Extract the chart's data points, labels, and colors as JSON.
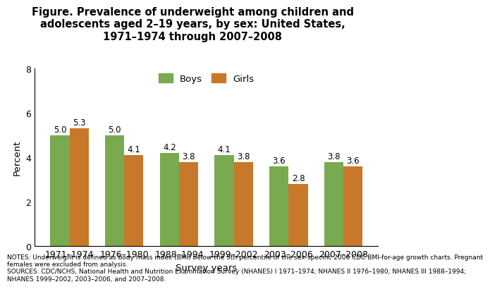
{
  "title_line1": "Figure. Prevalence of underweight among children and",
  "title_line2": "adolescents aged 2–19 years, by sex: United States,",
  "title_line3": "1971–1974 through 2007–2008",
  "categories": [
    "1971–1974",
    "1976–1980",
    "1988–1994",
    "1999–2002",
    "2003–2006",
    "2007–2008"
  ],
  "boys_values": [
    5.0,
    5.0,
    4.2,
    4.1,
    3.6,
    3.8
  ],
  "girls_values": [
    5.3,
    4.1,
    3.8,
    3.8,
    2.8,
    3.6
  ],
  "boys_color": "#7aaa4f",
  "girls_color": "#c8782a",
  "ylabel": "Percent",
  "xlabel": "Survey years",
  "ylim": [
    0,
    8
  ],
  "yticks": [
    0,
    2,
    4,
    6,
    8
  ],
  "bar_width": 0.35,
  "legend_labels": [
    "Boys",
    "Girls"
  ],
  "notes_text": "NOTES: Underweight is defined as body mass index (BMI) below the 5th percentile of the sex-specific 2000 CDC BMI-for-age growth charts. Pregnant\nfemales were excluded from analysis.\nSOURCES: CDC/NCHS, National Health and Nutrition Examination Survey (NHANES) I 1971–1974; NHANES II 1976–1980; NHANES III 1988–1994;\nNHANES 1999–2002, 2003–2006, and 2007–2008.",
  "background_color": "#ffffff",
  "title_fontsize": 10.5,
  "axis_label_fontsize": 9.5,
  "tick_fontsize": 9,
  "value_label_fontsize": 8.5,
  "notes_fontsize": 6.5,
  "legend_fontsize": 9.5
}
